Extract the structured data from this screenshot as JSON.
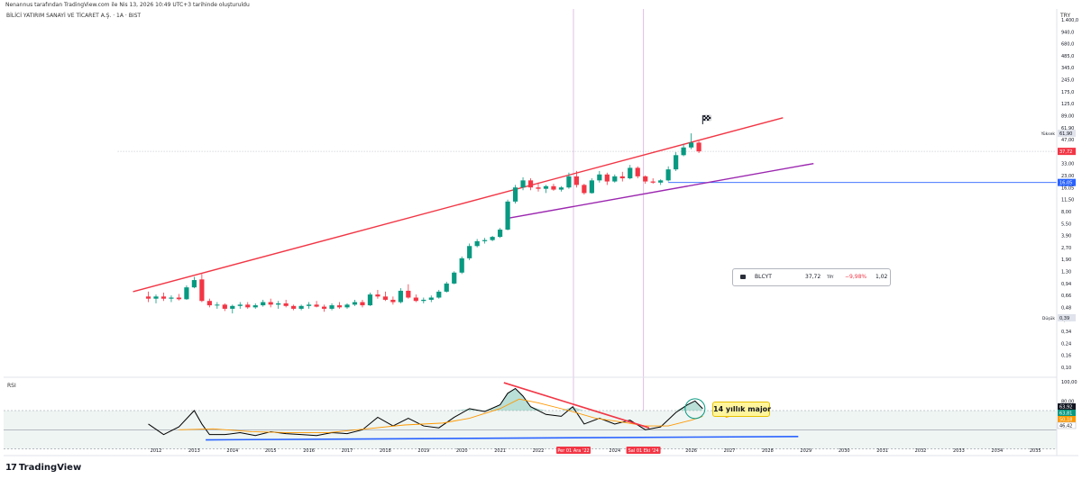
{
  "header": {
    "credit": "Nenannus tarafından TradingView.com ile Nis 13, 2026 10:49 UTC+3 tarihinde oluşturuldu",
    "symbol_line": "BİLİCİ YATIRIM SANAYİ VE TİCARET A.Ş. · 1A · BIST",
    "currency": "TRY"
  },
  "brand": {
    "logo": "17",
    "name": "TradingView"
  },
  "quote": {
    "symbol": "BLCYT",
    "price": "37,72",
    "unit": "TRY",
    "change": "−9,98%",
    "volume": "1,02"
  },
  "note": {
    "text": "14 yıllık major"
  },
  "rsi_label": "RSI",
  "chart_data": [
    {
      "type": "candlestick",
      "title": "BİLİCİ YATIRIM SANAYİ VE TİCARET A.Ş. · 1A · BIST",
      "y_scale": "log",
      "y_tick_labels": [
        "1.400,0",
        "940,0",
        "680,0",
        "485,0",
        "345,0",
        "245,0",
        "175,0",
        "125,0",
        "89,00",
        "61,90",
        "47,00",
        "37,72",
        "33,00",
        "23,00",
        "16,05",
        "11,50",
        "8,00",
        "5,50",
        "3,90",
        "2,70",
        "1,90",
        "1,30",
        "0,94",
        "0,66",
        "0,48",
        "0,39",
        "0,34",
        "0,24",
        "0,16",
        "0,10"
      ],
      "x_tick_labels": [
        "2012",
        "2013",
        "2014",
        "2015",
        "2016",
        "2017",
        "2018",
        "2019",
        "2020",
        "2021",
        "2022",
        "Per 01 Ara '22",
        "2024",
        "Sal 01 Eki '24",
        "2026",
        "2027",
        "2028",
        "2029",
        "2030",
        "2031",
        "2032",
        "2033",
        "2034",
        "2035"
      ],
      "price_labels": [
        {
          "label": "Yüksek",
          "value": "61,90",
          "color": "#e0e3eb"
        },
        {
          "label": "",
          "value": "37,72",
          "color": "#f23645"
        },
        {
          "label": "",
          "value": "16,05",
          "color": "#2962ff"
        },
        {
          "label": "Düşük",
          "value": "0,39",
          "color": "#e0e3eb"
        }
      ],
      "bull_color": "#089981",
      "bear_color": "#f23645",
      "candles": [
        {
          "t": 2011.8,
          "o": 0.7,
          "h": 0.8,
          "l": 0.6,
          "c": 0.66
        },
        {
          "t": 2012.0,
          "o": 0.66,
          "h": 0.74,
          "l": 0.58,
          "c": 0.7
        },
        {
          "t": 2012.2,
          "o": 0.7,
          "h": 0.78,
          "l": 0.62,
          "c": 0.66
        },
        {
          "t": 2012.4,
          "o": 0.66,
          "h": 0.72,
          "l": 0.6,
          "c": 0.68
        },
        {
          "t": 2012.6,
          "o": 0.68,
          "h": 0.75,
          "l": 0.63,
          "c": 0.65
        },
        {
          "t": 2012.8,
          "o": 0.65,
          "h": 0.95,
          "l": 0.64,
          "c": 0.9
        },
        {
          "t": 2013.0,
          "o": 0.9,
          "h": 1.2,
          "l": 0.88,
          "c": 1.1
        },
        {
          "t": 2013.2,
          "o": 1.12,
          "h": 1.3,
          "l": 0.6,
          "c": 0.62
        },
        {
          "t": 2013.4,
          "o": 0.62,
          "h": 0.66,
          "l": 0.52,
          "c": 0.55
        },
        {
          "t": 2013.6,
          "o": 0.55,
          "h": 0.6,
          "l": 0.5,
          "c": 0.56
        },
        {
          "t": 2013.8,
          "o": 0.56,
          "h": 0.58,
          "l": 0.47,
          "c": 0.5
        },
        {
          "t": 2014.0,
          "o": 0.5,
          "h": 0.56,
          "l": 0.44,
          "c": 0.54
        },
        {
          "t": 2014.2,
          "o": 0.54,
          "h": 0.6,
          "l": 0.5,
          "c": 0.56
        },
        {
          "t": 2014.4,
          "o": 0.56,
          "h": 0.6,
          "l": 0.5,
          "c": 0.52
        },
        {
          "t": 2014.6,
          "o": 0.52,
          "h": 0.58,
          "l": 0.5,
          "c": 0.55
        },
        {
          "t": 2014.8,
          "o": 0.55,
          "h": 0.64,
          "l": 0.53,
          "c": 0.6
        },
        {
          "t": 2015.0,
          "o": 0.6,
          "h": 0.66,
          "l": 0.52,
          "c": 0.56
        },
        {
          "t": 2015.2,
          "o": 0.56,
          "h": 0.62,
          "l": 0.5,
          "c": 0.58
        },
        {
          "t": 2015.4,
          "o": 0.58,
          "h": 0.64,
          "l": 0.52,
          "c": 0.54
        },
        {
          "t": 2015.6,
          "o": 0.54,
          "h": 0.56,
          "l": 0.48,
          "c": 0.5
        },
        {
          "t": 2015.8,
          "o": 0.5,
          "h": 0.56,
          "l": 0.48,
          "c": 0.54
        },
        {
          "t": 2016.0,
          "o": 0.54,
          "h": 0.6,
          "l": 0.5,
          "c": 0.56
        },
        {
          "t": 2016.2,
          "o": 0.56,
          "h": 0.62,
          "l": 0.52,
          "c": 0.53
        },
        {
          "t": 2016.4,
          "o": 0.53,
          "h": 0.56,
          "l": 0.46,
          "c": 0.5
        },
        {
          "t": 2016.6,
          "o": 0.5,
          "h": 0.58,
          "l": 0.48,
          "c": 0.55
        },
        {
          "t": 2016.8,
          "o": 0.55,
          "h": 0.6,
          "l": 0.5,
          "c": 0.52
        },
        {
          "t": 2017.0,
          "o": 0.52,
          "h": 0.58,
          "l": 0.5,
          "c": 0.56
        },
        {
          "t": 2017.2,
          "o": 0.56,
          "h": 0.64,
          "l": 0.54,
          "c": 0.6
        },
        {
          "t": 2017.4,
          "o": 0.6,
          "h": 0.64,
          "l": 0.52,
          "c": 0.55
        },
        {
          "t": 2017.6,
          "o": 0.55,
          "h": 0.78,
          "l": 0.54,
          "c": 0.74
        },
        {
          "t": 2017.8,
          "o": 0.74,
          "h": 0.84,
          "l": 0.66,
          "c": 0.7
        },
        {
          "t": 2018.0,
          "o": 0.7,
          "h": 0.8,
          "l": 0.62,
          "c": 0.64
        },
        {
          "t": 2018.2,
          "o": 0.64,
          "h": 0.7,
          "l": 0.56,
          "c": 0.6
        },
        {
          "t": 2018.4,
          "o": 0.6,
          "h": 0.88,
          "l": 0.58,
          "c": 0.82
        },
        {
          "t": 2018.6,
          "o": 0.82,
          "h": 0.98,
          "l": 0.66,
          "c": 0.68
        },
        {
          "t": 2018.8,
          "o": 0.68,
          "h": 0.74,
          "l": 0.6,
          "c": 0.62
        },
        {
          "t": 2019.0,
          "o": 0.62,
          "h": 0.68,
          "l": 0.58,
          "c": 0.64
        },
        {
          "t": 2019.2,
          "o": 0.64,
          "h": 0.72,
          "l": 0.6,
          "c": 0.68
        },
        {
          "t": 2019.4,
          "o": 0.68,
          "h": 0.84,
          "l": 0.66,
          "c": 0.8
        },
        {
          "t": 2019.6,
          "o": 0.8,
          "h": 1.05,
          "l": 0.78,
          "c": 1.0
        },
        {
          "t": 2019.8,
          "o": 1.0,
          "h": 1.4,
          "l": 0.98,
          "c": 1.35
        },
        {
          "t": 2020.0,
          "o": 1.35,
          "h": 2.1,
          "l": 1.3,
          "c": 2.0
        },
        {
          "t": 2020.2,
          "o": 2.0,
          "h": 3.0,
          "l": 1.9,
          "c": 2.8
        },
        {
          "t": 2020.4,
          "o": 2.8,
          "h": 3.4,
          "l": 2.7,
          "c": 3.2
        },
        {
          "t": 2020.6,
          "o": 3.2,
          "h": 3.5,
          "l": 3.0,
          "c": 3.3
        },
        {
          "t": 2020.8,
          "o": 3.3,
          "h": 3.7,
          "l": 3.2,
          "c": 3.6
        },
        {
          "t": 2021.0,
          "o": 3.6,
          "h": 4.6,
          "l": 3.5,
          "c": 4.4
        },
        {
          "t": 2021.2,
          "o": 4.4,
          "h": 10.0,
          "l": 4.3,
          "c": 9.5
        },
        {
          "t": 2021.4,
          "o": 9.5,
          "h": 15.0,
          "l": 9.0,
          "c": 14.0
        },
        {
          "t": 2021.6,
          "o": 14.0,
          "h": 18.5,
          "l": 13.0,
          "c": 17.0
        },
        {
          "t": 2021.8,
          "o": 17.0,
          "h": 18.0,
          "l": 13.0,
          "c": 14.0
        },
        {
          "t": 2022.0,
          "o": 14.0,
          "h": 16.0,
          "l": 12.5,
          "c": 13.5
        },
        {
          "t": 2022.2,
          "o": 13.5,
          "h": 15.0,
          "l": 12.0,
          "c": 14.5
        },
        {
          "t": 2022.4,
          "o": 14.5,
          "h": 15.5,
          "l": 12.8,
          "c": 13.2
        },
        {
          "t": 2022.6,
          "o": 13.2,
          "h": 14.5,
          "l": 12.5,
          "c": 14.0
        },
        {
          "t": 2022.8,
          "o": 14.0,
          "h": 21.0,
          "l": 13.5,
          "c": 19.0
        },
        {
          "t": 2023.0,
          "o": 19.0,
          "h": 22.0,
          "l": 14.0,
          "c": 15.0
        },
        {
          "t": 2023.2,
          "o": 15.0,
          "h": 15.5,
          "l": 11.5,
          "c": 12.0
        },
        {
          "t": 2023.4,
          "o": 12.0,
          "h": 18.0,
          "l": 11.8,
          "c": 17.0
        },
        {
          "t": 2023.6,
          "o": 17.0,
          "h": 22.0,
          "l": 16.0,
          "c": 20.0
        },
        {
          "t": 2023.8,
          "o": 20.0,
          "h": 21.0,
          "l": 15.0,
          "c": 16.5
        },
        {
          "t": 2024.0,
          "o": 16.5,
          "h": 20.0,
          "l": 16.0,
          "c": 19.0
        },
        {
          "t": 2024.2,
          "o": 19.0,
          "h": 21.5,
          "l": 16.5,
          "c": 18.0
        },
        {
          "t": 2024.4,
          "o": 18.0,
          "h": 26.0,
          "l": 17.5,
          "c": 24.0
        },
        {
          "t": 2024.6,
          "o": 24.0,
          "h": 25.0,
          "l": 18.0,
          "c": 19.0
        },
        {
          "t": 2024.8,
          "o": 19.0,
          "h": 19.5,
          "l": 15.5,
          "c": 16.5
        },
        {
          "t": 2025.0,
          "o": 16.5,
          "h": 18.0,
          "l": 15.5,
          "c": 16.0
        },
        {
          "t": 2025.2,
          "o": 16.0,
          "h": 17.5,
          "l": 15.0,
          "c": 17.0
        },
        {
          "t": 2025.4,
          "o": 17.0,
          "h": 25.0,
          "l": 16.5,
          "c": 23.0
        },
        {
          "t": 2025.6,
          "o": 23.0,
          "h": 37.0,
          "l": 22.0,
          "c": 34.0
        },
        {
          "t": 2025.8,
          "o": 34.0,
          "h": 46.0,
          "l": 33.0,
          "c": 42.0
        },
        {
          "t": 2026.0,
          "o": 42.0,
          "h": 61.9,
          "l": 40.0,
          "c": 48.0
        },
        {
          "t": 2026.2,
          "o": 48.0,
          "h": 50.0,
          "l": 36.0,
          "c": 37.72
        }
      ],
      "trendlines": [
        {
          "name": "",
          "color": "#f23645",
          "points": [
            [
              2011.4,
              0.8
            ],
            [
              2028.4,
              95.0
            ]
          ]
        },
        {
          "name": "",
          "color": "#9c27b0",
          "points": [
            [
              2021.2,
              6.0
            ],
            [
              2029.2,
              27.0
            ]
          ]
        }
      ],
      "horizontal_lines": [
        {
          "value": 16.05,
          "color": "#2962ff",
          "from": 2025.4
        },
        {
          "value": 37.72,
          "color": "#b2b5be",
          "from": 2011.0
        }
      ],
      "vertical_markers": [
        "Per 01 Ara '22",
        "Sal 01 Eki '24"
      ]
    },
    {
      "type": "line",
      "title": "RSI",
      "y_tick_labels": [
        "100,00",
        "80,00",
        "63,92",
        "63,81",
        "50,18",
        "46,42"
      ],
      "ylim": [
        40,
        100
      ],
      "series": [
        {
          "name": "",
          "color": "#000000",
          "points": [
            [
              2011.8,
              56
            ],
            [
              2012.2,
              45
            ],
            [
              2012.6,
              53
            ],
            [
              2013.0,
              70
            ],
            [
              2013.2,
              56
            ],
            [
              2013.4,
              45
            ],
            [
              2013.8,
              45
            ],
            [
              2014.2,
              47
            ],
            [
              2014.6,
              44
            ],
            [
              2015.0,
              48
            ],
            [
              2015.4,
              46
            ],
            [
              2015.8,
              45
            ],
            [
              2016.2,
              44
            ],
            [
              2016.6,
              47
            ],
            [
              2017.0,
              46
            ],
            [
              2017.4,
              50
            ],
            [
              2017.8,
              63
            ],
            [
              2018.2,
              54
            ],
            [
              2018.6,
              62
            ],
            [
              2019.0,
              54
            ],
            [
              2019.4,
              52
            ],
            [
              2019.8,
              63
            ],
            [
              2020.2,
              72
            ],
            [
              2020.6,
              69
            ],
            [
              2021.0,
              76
            ],
            [
              2021.2,
              88
            ],
            [
              2021.4,
              93
            ],
            [
              2021.6,
              85
            ],
            [
              2021.8,
              74
            ],
            [
              2022.2,
              66
            ],
            [
              2022.6,
              64
            ],
            [
              2022.9,
              74
            ],
            [
              2023.2,
              56
            ],
            [
              2023.6,
              62
            ],
            [
              2024.0,
              56
            ],
            [
              2024.4,
              60
            ],
            [
              2024.8,
              50
            ],
            [
              2025.2,
              53
            ],
            [
              2025.6,
              68
            ],
            [
              2025.9,
              76
            ],
            [
              2026.1,
              80
            ],
            [
              2026.3,
              72
            ]
          ]
        },
        {
          "name": "",
          "color": "#ff9800",
          "points": [
            [
              2012.6,
              50
            ],
            [
              2013.5,
              51
            ],
            [
              2014.5,
              48
            ],
            [
              2015.5,
              47
            ],
            [
              2016.5,
              47
            ],
            [
              2017.5,
              51
            ],
            [
              2018.5,
              55
            ],
            [
              2019.5,
              57
            ],
            [
              2020.2,
              62
            ],
            [
              2021.0,
              72
            ],
            [
              2021.5,
              82
            ],
            [
              2022.0,
              78
            ],
            [
              2022.8,
              70
            ],
            [
              2023.5,
              62
            ],
            [
              2024.2,
              58
            ],
            [
              2024.8,
              54
            ],
            [
              2025.4,
              54
            ],
            [
              2026.0,
              60
            ],
            [
              2026.3,
              64
            ]
          ]
        }
      ],
      "trendlines": [
        {
          "name": "",
          "color": "#f23645",
          "points": [
            [
              2021.1,
              99
            ],
            [
              2024.9,
              52
            ]
          ]
        },
        {
          "name": "",
          "color": "#2962ff",
          "points": [
            [
              2013.3,
              39.5
            ],
            [
              2028.8,
              43
            ]
          ]
        }
      ],
      "annotations": [
        "14 yıllık major"
      ]
    }
  ]
}
